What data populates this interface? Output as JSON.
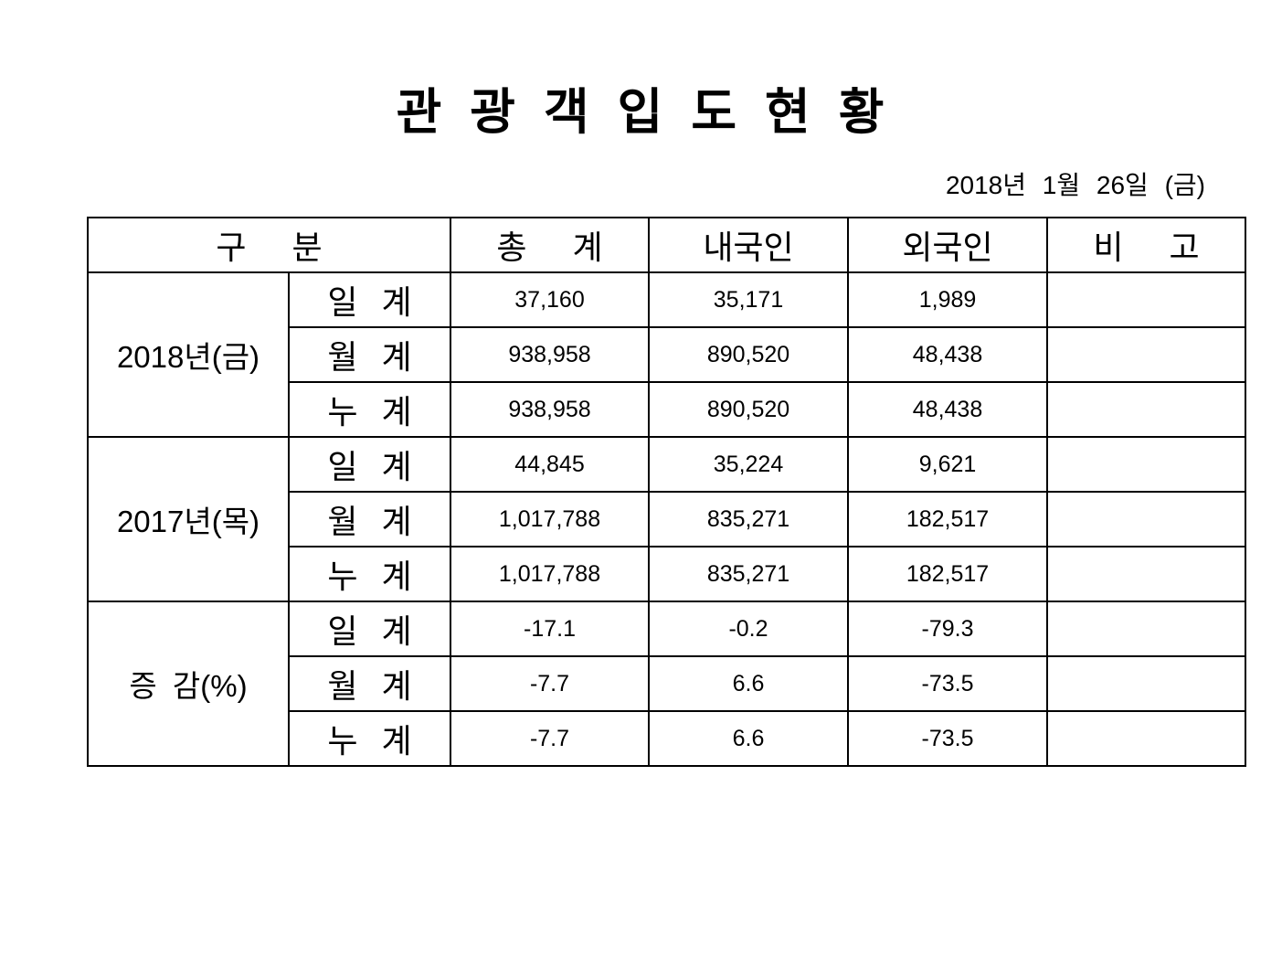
{
  "page": {
    "title": "관 광 객 입 도 현 황",
    "date": "2018년 1월 26일 (금)"
  },
  "table": {
    "headers": {
      "category": "구 분",
      "total": "총 계",
      "domestic": "내국인",
      "foreign": "외국인",
      "remarks": "비 고"
    },
    "groups": [
      {
        "label": "2018년(금)",
        "rows": [
          {
            "label": "일 계",
            "total": "37,160",
            "domestic": "35,171",
            "foreign": "1,989",
            "remarks": ""
          },
          {
            "label": "월 계",
            "total": "938,958",
            "domestic": "890,520",
            "foreign": "48,438",
            "remarks": ""
          },
          {
            "label": "누 계",
            "total": "938,958",
            "domestic": "890,520",
            "foreign": "48,438",
            "remarks": ""
          }
        ]
      },
      {
        "label": "2017년(목)",
        "rows": [
          {
            "label": "일 계",
            "total": "44,845",
            "domestic": "35,224",
            "foreign": "9,621",
            "remarks": ""
          },
          {
            "label": "월 계",
            "total": "1,017,788",
            "domestic": "835,271",
            "foreign": "182,517",
            "remarks": ""
          },
          {
            "label": "누 계",
            "total": "1,017,788",
            "domestic": "835,271",
            "foreign": "182,517",
            "remarks": ""
          }
        ]
      },
      {
        "label": "증 감(%)",
        "rows": [
          {
            "label": "일 계",
            "total": "-17.1",
            "domestic": "-0.2",
            "foreign": "-79.3",
            "remarks": ""
          },
          {
            "label": "월 계",
            "total": "-7.7",
            "domestic": "6.6",
            "foreign": "-73.5",
            "remarks": ""
          },
          {
            "label": "누 계",
            "total": "-7.7",
            "domestic": "6.6",
            "foreign": "-73.5",
            "remarks": ""
          }
        ]
      }
    ]
  }
}
